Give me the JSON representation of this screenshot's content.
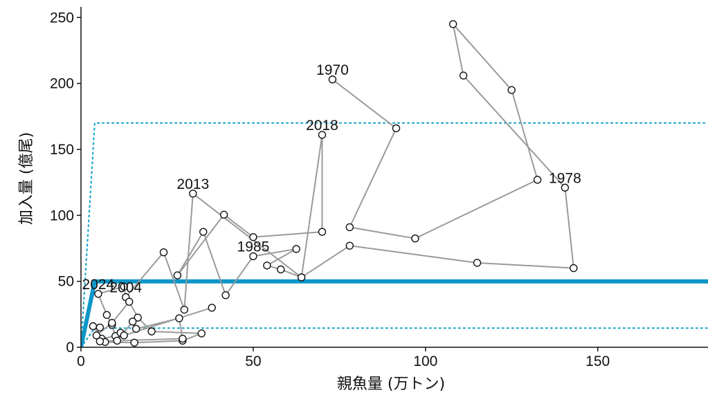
{
  "colors": {
    "trajectory": "#9a9a9a",
    "point_fill": "#ffffff",
    "point_stroke": "#111111",
    "model_line": "#0a96c8",
    "band": "#19a5c8",
    "axis": "#111111"
  },
  "chart_data": {
    "type": "scatter",
    "xlabel": "親魚量 (万トン)",
    "ylabel": "加入量 (億尾)",
    "xlim": [
      0,
      182
    ],
    "ylim": [
      0,
      258
    ],
    "x_ticks": [
      0,
      50,
      100,
      150
    ],
    "y_ticks": [
      0,
      50,
      100,
      150,
      200,
      250
    ],
    "grid": false,
    "legend": "none",
    "series": [
      {
        "points": [
          [
            73,
            203
          ],
          [
            91.5,
            166
          ],
          [
            78,
            91
          ],
          [
            97,
            82.5
          ],
          [
            132.5,
            127
          ],
          [
            125,
            195
          ],
          [
            108,
            245
          ],
          [
            111,
            206
          ],
          [
            140.5,
            121
          ],
          [
            143,
            60
          ],
          [
            115,
            64
          ],
          [
            78,
            77
          ],
          [
            64,
            53
          ],
          [
            58,
            59
          ],
          [
            54,
            62
          ],
          [
            62.5,
            74.5
          ],
          [
            50,
            69
          ],
          [
            42,
            39.5
          ],
          [
            35.5,
            87.5
          ],
          [
            28,
            54.5
          ],
          [
            41.5,
            100.5
          ],
          [
            50,
            83.5
          ],
          [
            70,
            87.5
          ],
          [
            70,
            161
          ],
          [
            64,
            53
          ],
          [
            32.5,
            116.5
          ],
          [
            30,
            28.5
          ],
          [
            24,
            72
          ],
          [
            13,
            38
          ],
          [
            12.5,
            46
          ],
          [
            5,
            40.5
          ],
          [
            7.5,
            24.5
          ],
          [
            9,
            17
          ],
          [
            10,
            8.5
          ],
          [
            6,
            6.5
          ],
          [
            3.5,
            16
          ],
          [
            5.5,
            15
          ],
          [
            4.5,
            9
          ],
          [
            9,
            18.5
          ],
          [
            14,
            34.5
          ],
          [
            16.5,
            22.5
          ],
          [
            20.5,
            12
          ],
          [
            35,
            10.5
          ],
          [
            29.5,
            5
          ],
          [
            15.5,
            3.5
          ],
          [
            7,
            4
          ],
          [
            5.5,
            4.5
          ],
          [
            29.5,
            6.5
          ],
          [
            28.5,
            22
          ],
          [
            16,
            14
          ],
          [
            15,
            19.5
          ],
          [
            10.5,
            5
          ],
          [
            11.5,
            11
          ],
          [
            12.5,
            9
          ],
          [
            38,
            30
          ]
        ]
      }
    ],
    "model_line": [
      [
        0,
        0
      ],
      [
        4,
        50
      ],
      [
        182,
        50
      ]
    ],
    "band_upper": [
      [
        0,
        0
      ],
      [
        4,
        170
      ],
      [
        182,
        170
      ]
    ],
    "band_lower": [
      [
        0,
        0
      ],
      [
        4,
        14.5
      ],
      [
        182,
        14.5
      ]
    ],
    "annotations": [
      {
        "text": "1970",
        "x": 73,
        "y": 203
      },
      {
        "text": "1978",
        "x": 140.5,
        "y": 121
      },
      {
        "text": "1985",
        "x": 50,
        "y": 69
      },
      {
        "text": "2004",
        "x": 13,
        "y": 38
      },
      {
        "text": "2013",
        "x": 32.5,
        "y": 116.5
      },
      {
        "text": "2018",
        "x": 70,
        "y": 161
      },
      {
        "text": "2024",
        "x": 5,
        "y": 40.5
      }
    ]
  }
}
